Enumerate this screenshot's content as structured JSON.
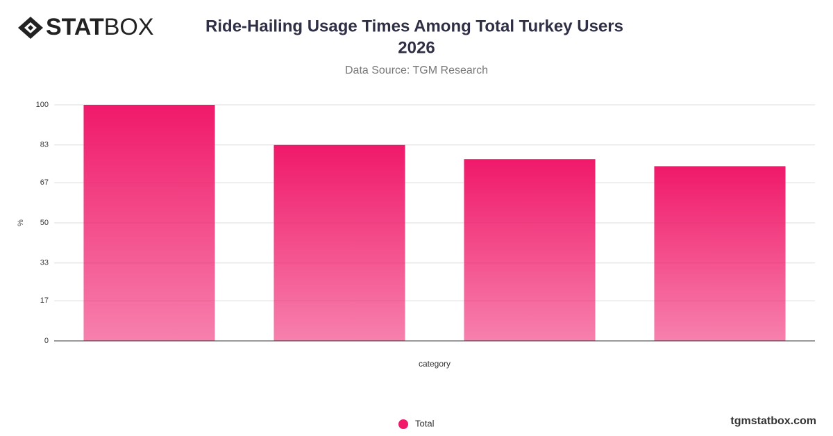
{
  "logo": {
    "bold": "STAT",
    "light": "BOX"
  },
  "footer": "tgmstatbox.com",
  "chart_data": {
    "type": "bar",
    "title": [
      "Ride-Hailing Usage Times Among Total Turkey Users",
      "2026"
    ],
    "subtitle": "Data Source: TGM Research",
    "y_label": "%",
    "x_label": "category",
    "categories": [
      null,
      null,
      null,
      null
    ],
    "series": [
      {
        "name": "Total",
        "color": "#f0196a",
        "values": [
          100,
          83,
          77,
          74
        ]
      }
    ],
    "ylim": [
      0,
      100
    ],
    "yticks": [
      0,
      17,
      33,
      50,
      67,
      83,
      100
    ],
    "grid": true,
    "legend": "bottom"
  }
}
